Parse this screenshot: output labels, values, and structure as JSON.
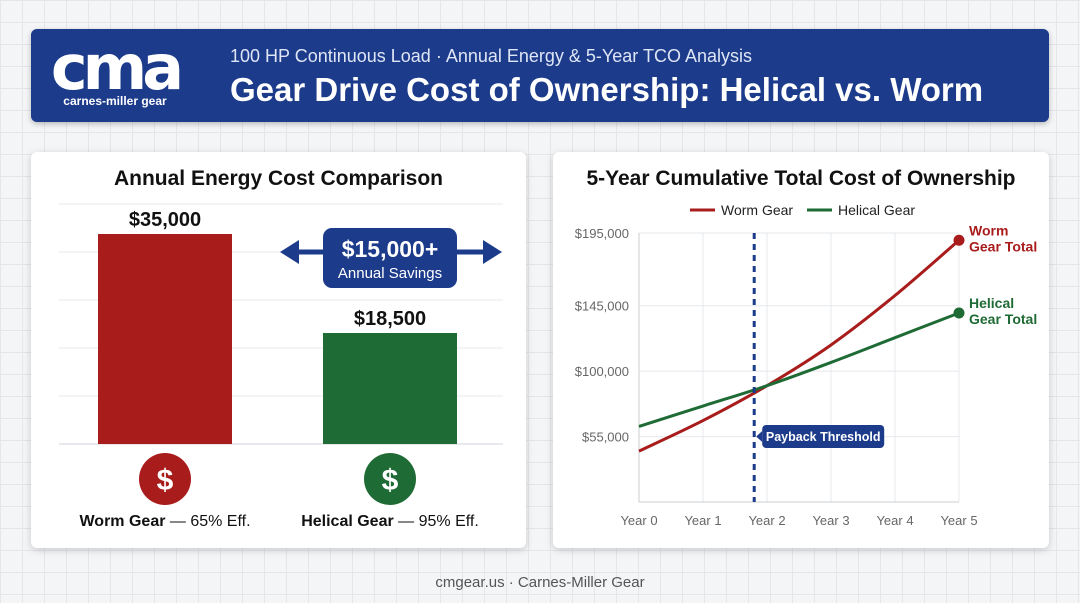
{
  "header": {
    "logo_text": "cma",
    "logo_name": "carnes-miller gear",
    "subtitle": "100 HP Continuous Load · Annual Energy & 5-Year TCO Analysis",
    "title": "Gear Drive Cost of Ownership: Helical vs. Worm"
  },
  "colors": {
    "worm": "#a81c1c",
    "helical": "#1f6b35",
    "navy": "#1c3b8b"
  },
  "icons": {
    "worm_icon": "dollar-icon",
    "helical_icon": "dollar-icon"
  },
  "chart_data": [
    {
      "type": "bar",
      "title": "Annual Energy Cost Comparison",
      "categories": [
        "Worm Gear",
        "Helical Gear"
      ],
      "values": [
        35000,
        18500
      ],
      "value_labels": [
        "$35,000",
        "$18,500"
      ],
      "category_labels": [
        {
          "name": "Worm Gear",
          "detail": " — 65% Eff."
        },
        {
          "name": "Helical Gear",
          "detail": " — 95% Eff."
        }
      ],
      "ylim": [
        0,
        42000
      ],
      "grid": true,
      "annotation": {
        "value": "$15,000+",
        "label": "Annual Savings"
      }
    },
    {
      "type": "line",
      "title": "5-Year Cumulative Total Cost of Ownership",
      "x": [
        "Year 0",
        "Year 1",
        "Year 2",
        "Year 3",
        "Year 4",
        "Year 5"
      ],
      "series": [
        {
          "name": "Worm Gear",
          "values": [
            45000,
            66000,
            90000,
            118000,
            152000,
            190000
          ],
          "end_label": [
            "Worm",
            "Gear Total"
          ]
        },
        {
          "name": "Helical Gear",
          "values": [
            62000,
            76000,
            90000,
            106000,
            123000,
            140000
          ],
          "end_label": [
            "Helical",
            "Gear Total"
          ]
        }
      ],
      "yticks": [
        "$55,000",
        "$100,000",
        "$145,000",
        "$195,000"
      ],
      "ytick_values": [
        55000,
        100000,
        145000,
        195000
      ],
      "ylim": [
        10000,
        195000
      ],
      "grid": true,
      "legend": "top",
      "vline": {
        "x": 1.8,
        "label": "Payback Threshold"
      }
    }
  ],
  "footer": "cmgear.us · Carnes-Miller Gear"
}
